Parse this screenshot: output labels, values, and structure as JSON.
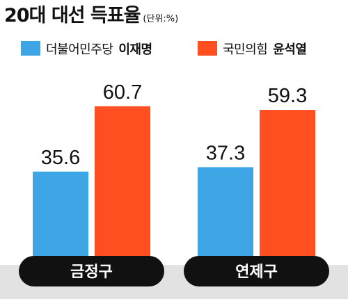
{
  "title": "20대 대선 득표율",
  "unit": "(단위:%)",
  "legend": [
    {
      "party": "더불어민주당",
      "candidate": "이재명",
      "color": "#3fa6e6"
    },
    {
      "party": "국민의힘",
      "candidate": "윤석열",
      "color": "#ff4e1f"
    }
  ],
  "chart_data": {
    "type": "bar",
    "title": "20대 대선 득표율",
    "unit": "(단위:%)",
    "categories": [
      "금정구",
      "연제구"
    ],
    "series": [
      {
        "name": "더불어민주당 이재명",
        "values": [
          35.6,
          37.3
        ],
        "color": "#3fa6e6"
      },
      {
        "name": "국민의힘 윤석열",
        "values": [
          60.7,
          59.3
        ],
        "color": "#ff4e1f"
      }
    ],
    "ylim": [
      0,
      70
    ],
    "grid": false,
    "legend_position": "top"
  },
  "colors": {
    "category_pill": "#111111",
    "baseline_band": "#e2e2e2"
  }
}
